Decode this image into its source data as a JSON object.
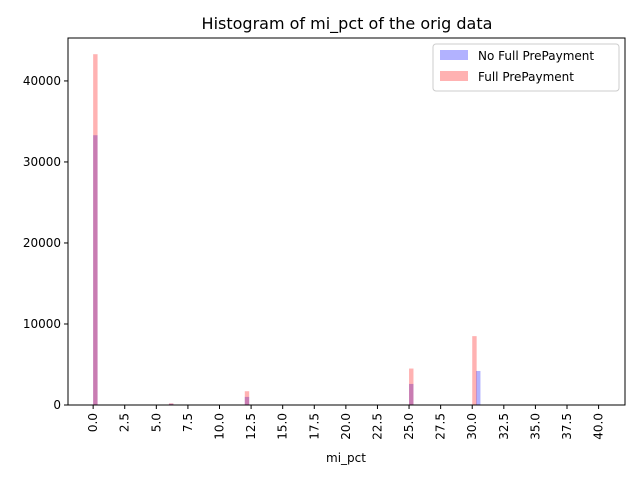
{
  "chart_data": {
    "type": "bar",
    "title": "Histogram of mi_pct of the orig data",
    "xlabel": "mi_pct",
    "ylabel": "",
    "xlim": [
      -1.99,
      42.09
    ],
    "ylim": [
      0,
      45300
    ],
    "bin_width": 0.35,
    "x_ticks": [
      "0.0",
      "2.5",
      "5.0",
      "7.5",
      "10.0",
      "12.5",
      "15.0",
      "17.5",
      "20.0",
      "22.5",
      "25.0",
      "27.5",
      "30.0",
      "32.5",
      "35.0",
      "37.5",
      "40.0"
    ],
    "y_ticks": [
      "0",
      "10000",
      "20000",
      "30000",
      "40000"
    ],
    "legend_position": "upper-right",
    "series": [
      {
        "name": "No Full PrePayment",
        "color": "#0000ff",
        "alpha": 0.3,
        "bins": [
          {
            "x": 0.0,
            "value": 33300
          },
          {
            "x": 6.0,
            "value": 150
          },
          {
            "x": 12.0,
            "value": 1000
          },
          {
            "x": 25.0,
            "value": 2600
          },
          {
            "x": 30.3,
            "value": 4200
          }
        ]
      },
      {
        "name": "Full PrePayment",
        "color": "#ff0000",
        "alpha": 0.3,
        "bins": [
          {
            "x": 0.0,
            "value": 43300
          },
          {
            "x": 6.0,
            "value": 200
          },
          {
            "x": 12.0,
            "value": 1700
          },
          {
            "x": 25.0,
            "value": 4500
          },
          {
            "x": 30.0,
            "value": 8500
          }
        ]
      }
    ]
  }
}
